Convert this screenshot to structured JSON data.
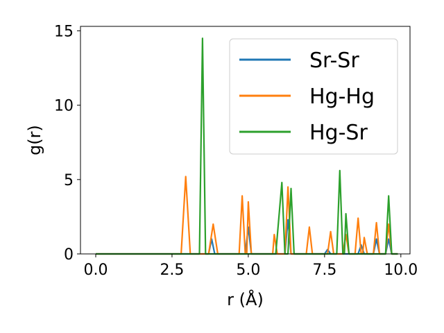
{
  "chart_data": {
    "type": "line",
    "xlabel": "r (Å)",
    "ylabel": "g(r)",
    "xlim": [
      -0.5,
      10.3
    ],
    "ylim": [
      0,
      15.3
    ],
    "xticks": [
      0.0,
      2.5,
      5.0,
      7.5,
      10.0
    ],
    "xtick_labels": [
      "0.0",
      "2.5",
      "5.0",
      "7.5",
      "10.0"
    ],
    "yticks": [
      0,
      5,
      10,
      15
    ],
    "ytick_labels": [
      "0",
      "5",
      "10",
      "15"
    ],
    "grid": false,
    "legend_position": "top-right",
    "series": [
      {
        "name": "Sr-Sr",
        "color": "#1f77b4",
        "x": [
          0.0,
          3.7,
          3.8,
          3.9,
          4.9,
          5.0,
          5.1,
          6.2,
          6.3,
          6.4,
          7.5,
          7.6,
          7.7,
          8.6,
          8.7,
          8.8,
          9.1,
          9.2,
          9.3,
          9.5,
          9.6,
          9.7,
          9.9
        ],
        "y": [
          0,
          0,
          1.0,
          0,
          0,
          1.8,
          0,
          0,
          2.3,
          0,
          0,
          0.3,
          0,
          0,
          0.6,
          0,
          0,
          1.0,
          0,
          0,
          1.0,
          0,
          0
        ]
      },
      {
        "name": "Hg-Hg",
        "color": "#ff7f0e",
        "x": [
          0.0,
          2.8,
          2.95,
          3.1,
          3.7,
          3.85,
          4.0,
          4.7,
          4.8,
          4.9,
          4.95,
          5.0,
          5.1,
          5.8,
          5.85,
          5.95,
          6.2,
          6.3,
          6.4,
          6.9,
          7.0,
          7.1,
          7.6,
          7.7,
          7.8,
          8.1,
          8.2,
          8.3,
          8.5,
          8.6,
          8.7,
          8.75,
          8.8,
          8.9,
          9.1,
          9.2,
          9.3,
          9.5,
          9.6,
          9.7,
          9.9
        ],
        "y": [
          0,
          0,
          5.2,
          0,
          0,
          2.0,
          0,
          0,
          3.9,
          0,
          0,
          3.5,
          0,
          0,
          1.3,
          0,
          0,
          4.5,
          0,
          0,
          1.8,
          0,
          0,
          1.5,
          0,
          0,
          1.3,
          0,
          0,
          2.4,
          0,
          0,
          1.1,
          0,
          0,
          2.1,
          0,
          0,
          2.0,
          0,
          0
        ]
      },
      {
        "name": "Hg-Sr",
        "color": "#2ca02c",
        "x": [
          0.0,
          3.4,
          3.5,
          3.6,
          5.9,
          6.1,
          6.2,
          6.3,
          6.4,
          6.5,
          7.9,
          8.0,
          8.1,
          8.15,
          8.2,
          8.3,
          9.5,
          9.6,
          9.7,
          9.9
        ],
        "y": [
          0,
          0,
          14.5,
          0,
          0,
          4.8,
          0,
          0,
          4.4,
          0,
          0,
          5.6,
          0,
          0,
          2.7,
          0,
          0,
          3.9,
          0,
          0
        ]
      }
    ]
  }
}
